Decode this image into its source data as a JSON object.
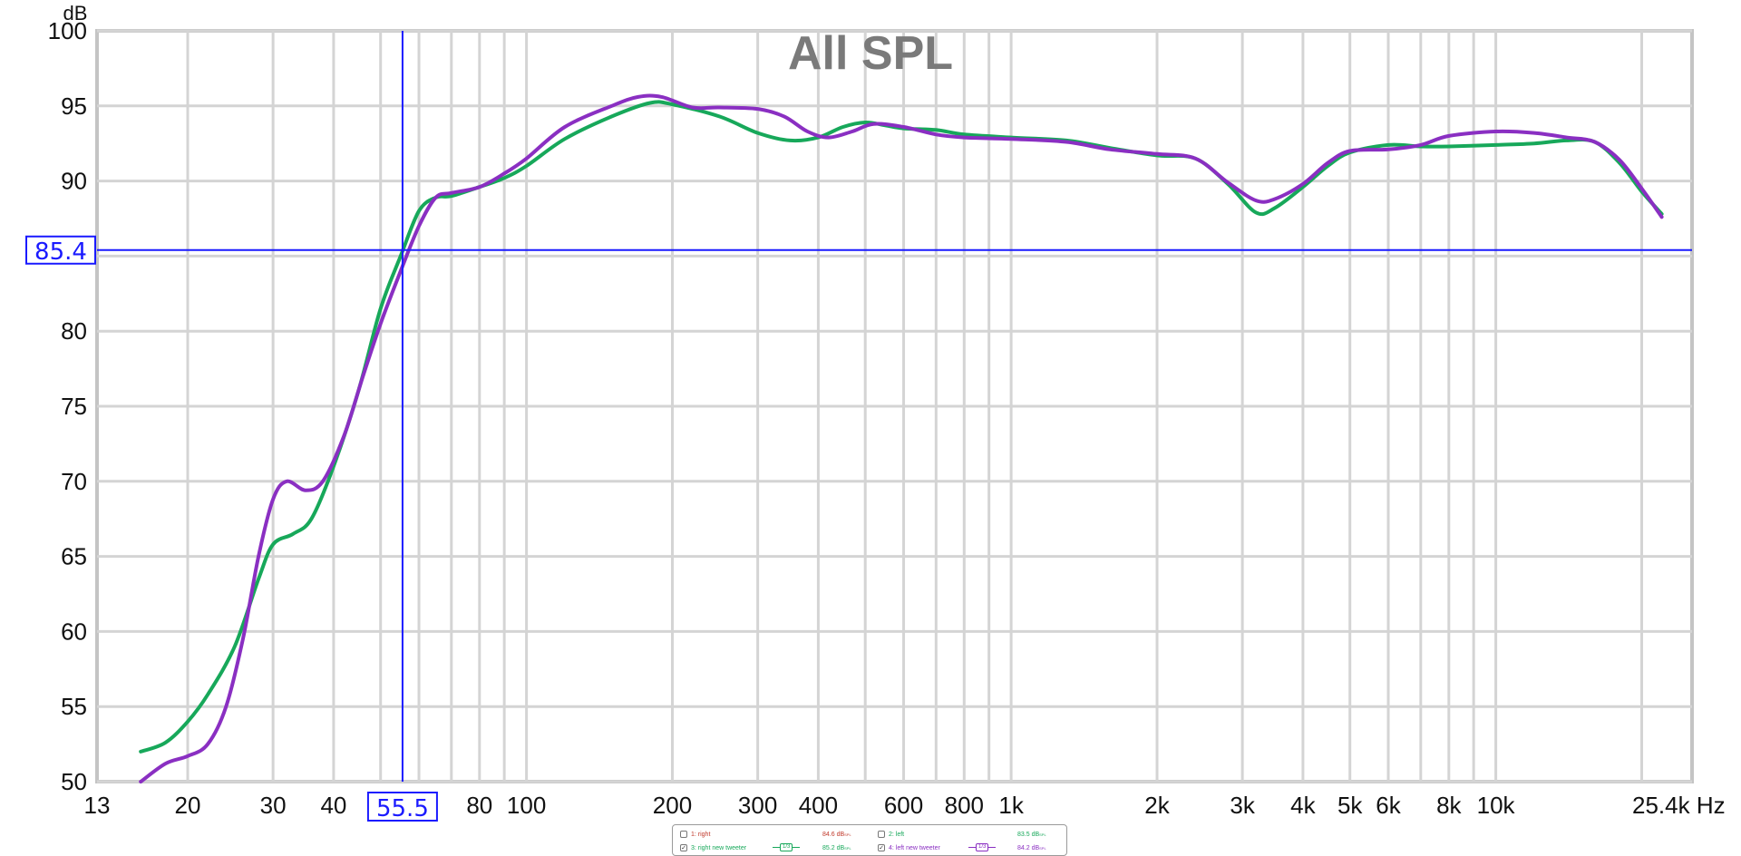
{
  "chart_data": {
    "type": "line",
    "title": "All SPL",
    "ylabel": "dB",
    "xunit": "Hz",
    "xscale": "log",
    "xlim": [
      13,
      25400
    ],
    "ylim": [
      50,
      100
    ],
    "grid": true,
    "x_ticks": [
      {
        "v": 13,
        "label": "13"
      },
      {
        "v": 20,
        "label": "20"
      },
      {
        "v": 30,
        "label": "30"
      },
      {
        "v": 40,
        "label": "40"
      },
      {
        "v": 80,
        "label": "80"
      },
      {
        "v": 100,
        "label": "100"
      },
      {
        "v": 200,
        "label": "200"
      },
      {
        "v": 300,
        "label": "300"
      },
      {
        "v": 400,
        "label": "400"
      },
      {
        "v": 600,
        "label": "600"
      },
      {
        "v": 800,
        "label": "800"
      },
      {
        "v": 1000,
        "label": "1k"
      },
      {
        "v": 2000,
        "label": "2k"
      },
      {
        "v": 3000,
        "label": "3k"
      },
      {
        "v": 4000,
        "label": "4k"
      },
      {
        "v": 5000,
        "label": "5k"
      },
      {
        "v": 6000,
        "label": "6k"
      },
      {
        "v": 8000,
        "label": "8k"
      },
      {
        "v": 10000,
        "label": "10k"
      },
      {
        "v": 25400,
        "label": "25.4k Hz"
      }
    ],
    "y_ticks": [
      {
        "v": 100,
        "label": "100"
      },
      {
        "v": 95,
        "label": "95"
      },
      {
        "v": 90,
        "label": "90"
      },
      {
        "v": 80,
        "label": "80"
      },
      {
        "v": 75,
        "label": "75"
      },
      {
        "v": 70,
        "label": "70"
      },
      {
        "v": 65,
        "label": "65"
      },
      {
        "v": 60,
        "label": "60"
      },
      {
        "v": 55,
        "label": "55"
      },
      {
        "v": 50,
        "label": "50"
      }
    ],
    "cursor": {
      "x": 55.5,
      "y": 85.4,
      "x_label": "55.5",
      "y_label": "85.4",
      "color": "#1a1aff"
    },
    "series": [
      {
        "name": "3: right new tweeter",
        "color": "#17a85a",
        "points": [
          [
            16,
            52.0
          ],
          [
            18,
            52.6
          ],
          [
            20,
            54.0
          ],
          [
            22,
            55.8
          ],
          [
            25,
            59.0
          ],
          [
            28,
            63.5
          ],
          [
            30,
            65.8
          ],
          [
            33,
            66.5
          ],
          [
            36,
            67.5
          ],
          [
            40,
            71.0
          ],
          [
            45,
            76.0
          ],
          [
            50,
            81.5
          ],
          [
            55,
            85.0
          ],
          [
            60,
            88.0
          ],
          [
            65,
            88.9
          ],
          [
            70,
            89.0
          ],
          [
            80,
            89.6
          ],
          [
            90,
            90.2
          ],
          [
            100,
            91.0
          ],
          [
            120,
            92.8
          ],
          [
            150,
            94.3
          ],
          [
            180,
            95.2
          ],
          [
            200,
            95.1
          ],
          [
            250,
            94.3
          ],
          [
            300,
            93.2
          ],
          [
            350,
            92.7
          ],
          [
            400,
            92.9
          ],
          [
            450,
            93.6
          ],
          [
            500,
            93.9
          ],
          [
            550,
            93.7
          ],
          [
            600,
            93.5
          ],
          [
            700,
            93.4
          ],
          [
            800,
            93.1
          ],
          [
            1000,
            92.9
          ],
          [
            1300,
            92.7
          ],
          [
            1600,
            92.2
          ],
          [
            2000,
            91.7
          ],
          [
            2400,
            91.5
          ],
          [
            2800,
            89.8
          ],
          [
            3200,
            87.9
          ],
          [
            3500,
            88.2
          ],
          [
            4000,
            89.6
          ],
          [
            4500,
            91.0
          ],
          [
            5000,
            91.9
          ],
          [
            6000,
            92.4
          ],
          [
            7000,
            92.3
          ],
          [
            8000,
            92.3
          ],
          [
            10000,
            92.4
          ],
          [
            12000,
            92.5
          ],
          [
            14000,
            92.7
          ],
          [
            16000,
            92.6
          ],
          [
            18000,
            91.2
          ],
          [
            20000,
            89.3
          ],
          [
            22000,
            87.8
          ]
        ]
      },
      {
        "name": "4: left new tweeter",
        "color": "#8a2fc2",
        "points": [
          [
            16,
            50.0
          ],
          [
            18,
            51.2
          ],
          [
            20,
            51.7
          ],
          [
            22,
            52.5
          ],
          [
            24,
            55.0
          ],
          [
            26,
            59.5
          ],
          [
            28,
            65.0
          ],
          [
            30,
            68.8
          ],
          [
            32,
            70.0
          ],
          [
            35,
            69.4
          ],
          [
            38,
            70.0
          ],
          [
            42,
            73.0
          ],
          [
            46,
            77.0
          ],
          [
            50,
            80.5
          ],
          [
            55,
            84.0
          ],
          [
            60,
            87.0
          ],
          [
            65,
            88.9
          ],
          [
            70,
            89.2
          ],
          [
            80,
            89.6
          ],
          [
            90,
            90.5
          ],
          [
            100,
            91.5
          ],
          [
            120,
            93.6
          ],
          [
            150,
            95.0
          ],
          [
            170,
            95.6
          ],
          [
            190,
            95.6
          ],
          [
            220,
            94.9
          ],
          [
            250,
            94.9
          ],
          [
            300,
            94.8
          ],
          [
            340,
            94.3
          ],
          [
            380,
            93.3
          ],
          [
            420,
            92.9
          ],
          [
            470,
            93.3
          ],
          [
            520,
            93.8
          ],
          [
            600,
            93.6
          ],
          [
            700,
            93.1
          ],
          [
            800,
            92.9
          ],
          [
            1000,
            92.8
          ],
          [
            1300,
            92.6
          ],
          [
            1600,
            92.1
          ],
          [
            2000,
            91.8
          ],
          [
            2400,
            91.5
          ],
          [
            2800,
            89.9
          ],
          [
            3200,
            88.7
          ],
          [
            3500,
            88.8
          ],
          [
            4000,
            89.8
          ],
          [
            4500,
            91.2
          ],
          [
            5000,
            92.0
          ],
          [
            6000,
            92.1
          ],
          [
            7000,
            92.4
          ],
          [
            8000,
            93.0
          ],
          [
            10000,
            93.3
          ],
          [
            12000,
            93.2
          ],
          [
            14000,
            92.9
          ],
          [
            16000,
            92.6
          ],
          [
            18000,
            91.4
          ],
          [
            20000,
            89.5
          ],
          [
            22000,
            87.6
          ]
        ]
      }
    ]
  },
  "legend": {
    "row1": [
      {
        "name": "1: right",
        "value": "84.6 dB",
        "unit_sup": "SPL",
        "checked": false,
        "color": "#c0392b",
        "smoothing": ""
      },
      {
        "name": "2: left",
        "value": "83.5 dB",
        "unit_sup": "SPL",
        "checked": false,
        "color": "#17a85a",
        "smoothing": ""
      }
    ],
    "row2": [
      {
        "name": "3: right new tweeter",
        "value": "85.2 dB",
        "unit_sup": "SPL",
        "checked": true,
        "color": "#17a85a",
        "smoothing": "1/3"
      },
      {
        "name": "4: left new tweeter",
        "value": "84.2 dB",
        "unit_sup": "SPL",
        "checked": true,
        "color": "#8a2fc2",
        "smoothing": "1/3"
      }
    ]
  }
}
